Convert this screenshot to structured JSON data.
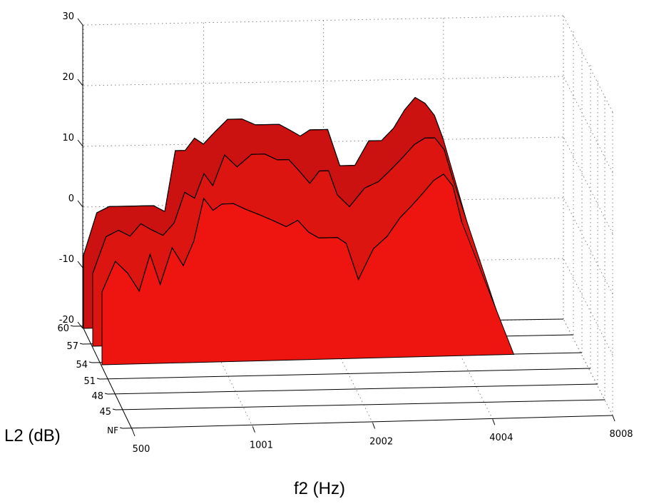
{
  "chart_data": {
    "type": "area",
    "xlabel": "f2 (Hz)",
    "ylabel": "L2 (dB)",
    "x_ticks": [
      "500",
      "1001",
      "2002",
      "4004",
      "8008"
    ],
    "y_ticks": [
      "NF",
      "45",
      "48",
      "51",
      "54",
      "57",
      "60"
    ],
    "z_ticks": [
      "-20",
      "-10",
      "0",
      "10",
      "20",
      "30"
    ],
    "zlim": [
      -20,
      30
    ],
    "x_scale": "log",
    "grid": true,
    "series": [
      {
        "level": "60",
        "color": "#cc1111",
        "x": [
          500,
          540,
          580,
          620,
          660,
          700,
          750,
          800,
          850,
          900,
          950,
          1000,
          1070,
          1150,
          1250,
          1350,
          1450,
          1550,
          1650,
          1750,
          1850,
          1950,
          2050,
          2200,
          2400,
          2600,
          2800,
          3000,
          3200,
          3400,
          3600,
          3800,
          4000
        ],
        "values": [
          -8,
          -1,
          0,
          0,
          0,
          0,
          0,
          -1,
          9,
          9,
          11,
          10,
          12,
          14,
          14,
          13,
          13,
          13,
          12,
          11,
          12,
          12,
          12,
          6,
          6,
          10,
          10,
          12,
          15,
          17,
          16,
          14,
          10
        ]
      },
      {
        "level": "57",
        "color": "#dd1510",
        "x": [
          500,
          540,
          580,
          620,
          660,
          700,
          750,
          800,
          850,
          900,
          950,
          1000,
          1070,
          1150,
          1250,
          1350,
          1450,
          1550,
          1650,
          1750,
          1850,
          1950,
          2050,
          2200,
          2400,
          2600,
          2800,
          3000,
          3200,
          3400,
          3600,
          3800,
          4000
        ],
        "values": [
          -8,
          -2,
          -1,
          -2,
          0,
          -1,
          -2,
          0,
          5,
          4,
          8,
          6,
          11,
          9,
          11,
          11,
          10,
          10,
          8,
          6,
          8,
          8,
          4,
          2,
          5,
          6,
          8,
          10,
          12,
          13,
          13,
          11,
          6
        ]
      },
      {
        "level": "54",
        "color": "#ee1410",
        "x": [
          500,
          540,
          580,
          620,
          660,
          700,
          750,
          800,
          850,
          900,
          950,
          1000,
          1070,
          1150,
          1250,
          1350,
          1450,
          1550,
          1650,
          1750,
          1850,
          1950,
          2050,
          2200,
          2400,
          2600,
          2800,
          3000,
          3200,
          3400,
          3600,
          3800,
          4000
        ],
        "values": [
          -8,
          -3,
          -5,
          -8,
          -2,
          -7,
          -1,
          -4,
          0,
          7,
          5,
          6,
          6,
          5,
          4,
          3,
          2,
          3,
          1,
          0,
          0,
          0,
          -1,
          -7,
          -2,
          0,
          3,
          5,
          7,
          9,
          10,
          8,
          2
        ]
      }
    ]
  }
}
